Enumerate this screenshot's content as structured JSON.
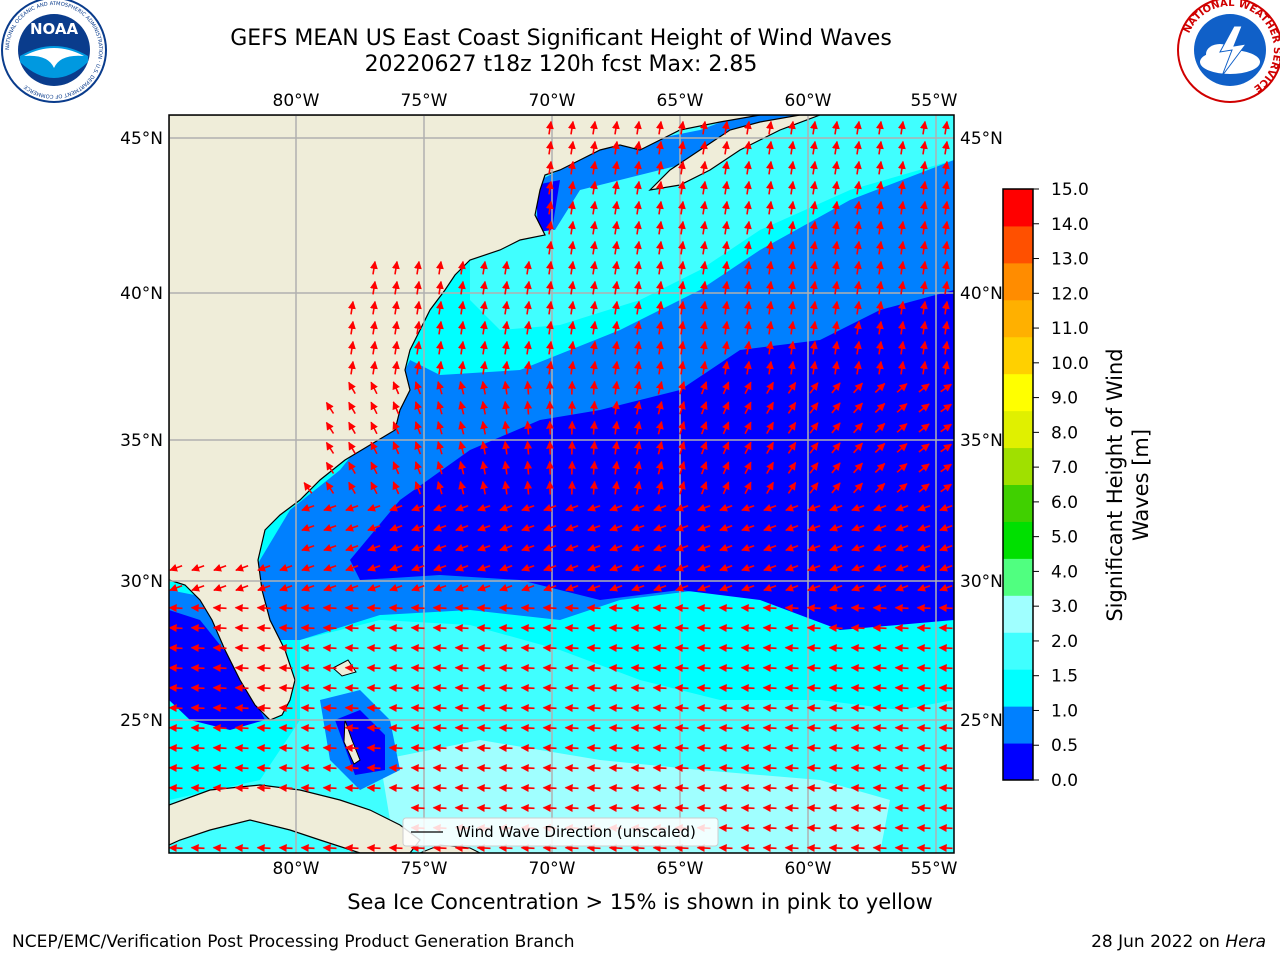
{
  "title": {
    "line1": "GEFS MEAN US East Coast Significant Height of Wind Waves",
    "line2": "20220627 t18z 120h fcst   Max: 2.85"
  },
  "map": {
    "lon_ticks": [
      "80°W",
      "75°W",
      "70°W",
      "65°W",
      "60°W",
      "55°W"
    ],
    "lat_ticks": [
      "45°N",
      "40°N",
      "35°N",
      "30°N",
      "25°N"
    ],
    "legend_label": "Wind Wave Direction (unscaled)",
    "colors": {
      "land": "#efedd9",
      "arrow": "#ff0000",
      "grid": "#b0b0b0",
      "bins": [
        "#0000ff",
        "#0080ff",
        "#00ffff",
        "#40ffff",
        "#a0ffff",
        "#50ff80",
        "#00e000",
        "#40d000",
        "#a0e000",
        "#e0f000",
        "#ffff00",
        "#ffd000",
        "#ffb000",
        "#ff8c00",
        "#ff5000",
        "#ff0000"
      ]
    }
  },
  "colorbar": {
    "ticks": [
      "0.0",
      "0.5",
      "1.0",
      "1.5",
      "2.0",
      "3.0",
      "4.0",
      "5.0",
      "6.0",
      "7.0",
      "8.0",
      "9.0",
      "10.0",
      "11.0",
      "12.0",
      "13.0",
      "14.0",
      "15.0"
    ],
    "label_line1": "Significant Height of Wind",
    "label_line2": "Waves [m]"
  },
  "logos": {
    "noaa_text": "NOAA",
    "noaa_ring": "NATIONAL OCEANIC AND ATMOSPHERIC ADMINISTRATION · U.S. DEPARTMENT OF COMMERCE",
    "nws_ring": "NATIONAL WEATHER SERVICE"
  },
  "notes": {
    "ice": "Sea Ice Concentration > 15% is shown in pink to yellow",
    "footer_left": "NCEP/EMC/Verification Post Processing Product Generation Branch",
    "footer_date": "28 Jun 2022 on ",
    "footer_host": "Hera"
  }
}
